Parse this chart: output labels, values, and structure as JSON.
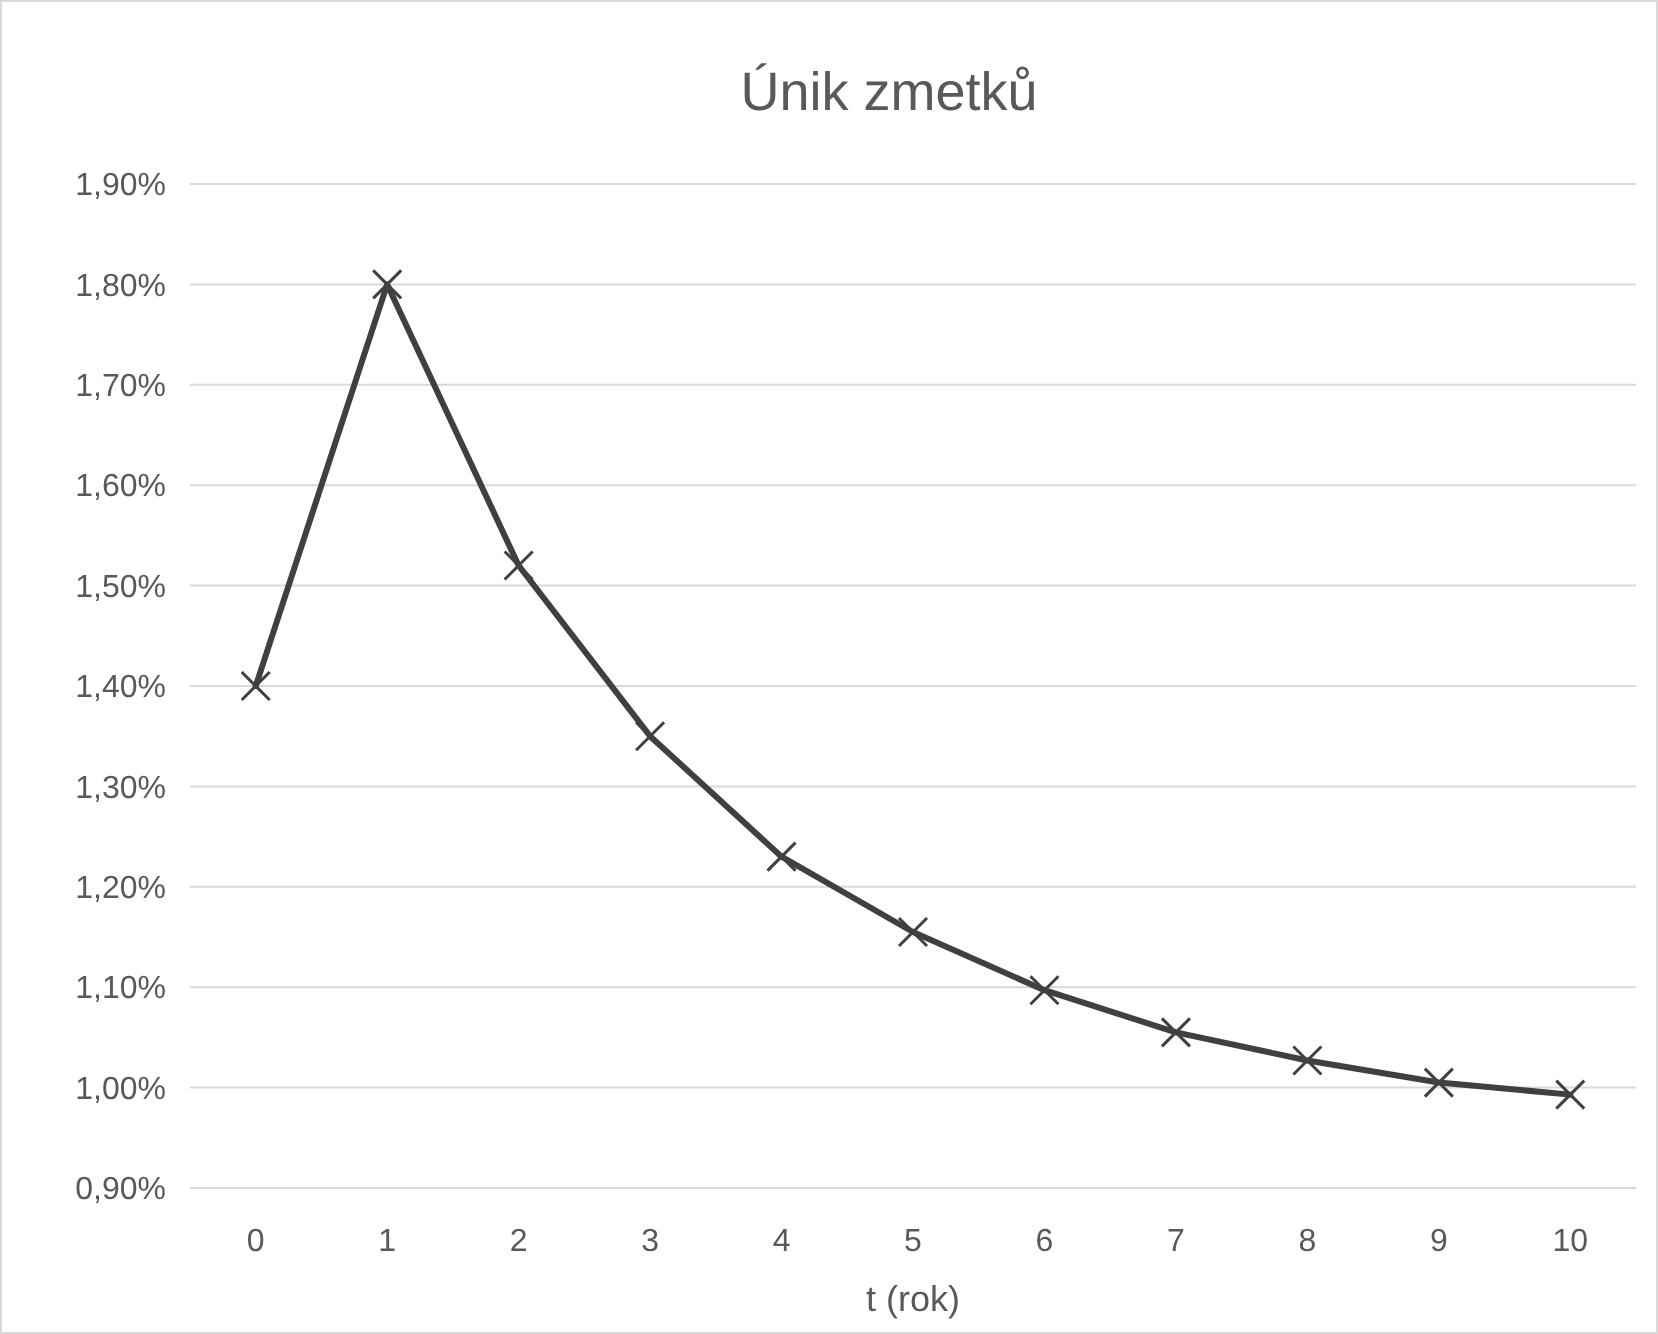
{
  "chart_data": {
    "type": "line",
    "title": "Únik zmetků",
    "xlabel": "t (rok)",
    "categories": [
      "0",
      "1",
      "2",
      "3",
      "4",
      "5",
      "6",
      "7",
      "8",
      "9",
      "10"
    ],
    "series": [
      {
        "color": "#404040",
        "values": [
          1.4,
          1.8,
          1.52,
          1.35,
          1.23,
          1.155,
          1.097,
          1.055,
          1.027,
          1.005,
          0.993
        ]
      }
    ],
    "ylim": [
      0.9,
      1.9
    ],
    "yticks": [
      {
        "value": 0.9,
        "label": "0,90%"
      },
      {
        "value": 1.0,
        "label": "1,00%"
      },
      {
        "value": 1.1,
        "label": "1,10%"
      },
      {
        "value": 1.2,
        "label": "1,20%"
      },
      {
        "value": 1.3,
        "label": "1,30%"
      },
      {
        "value": 1.4,
        "label": "1,40%"
      },
      {
        "value": 1.5,
        "label": "1,50%"
      },
      {
        "value": 1.6,
        "label": "1,60%"
      },
      {
        "value": 1.7,
        "label": "1,70%"
      },
      {
        "value": 1.8,
        "label": "1,80%"
      },
      {
        "value": 1.9,
        "label": "1,90%"
      }
    ],
    "grid": "y",
    "marker": "cross",
    "line_style": "solid"
  }
}
